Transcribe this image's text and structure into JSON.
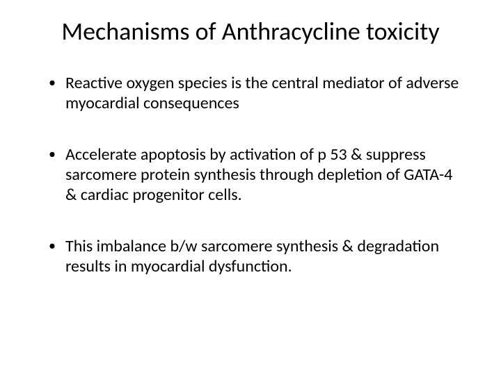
{
  "slide": {
    "title": "Mechanisms of Anthracycline toxicity",
    "bullets": [
      "Reactive oxygen species is the central mediator of adverse myocardial consequences",
      "Accelerate apoptosis by activation of p 53 & suppress sarcomere protein synthesis through depletion of GATA-4 & cardiac progenitor cells.",
      "This imbalance b/w  sarcomere synthesis  & degradation results in myocardial dysfunction."
    ]
  },
  "style": {
    "background_color": "#ffffff",
    "text_color": "#000000",
    "title_fontsize": 36,
    "body_fontsize": 24,
    "font_family": "Calibri"
  }
}
